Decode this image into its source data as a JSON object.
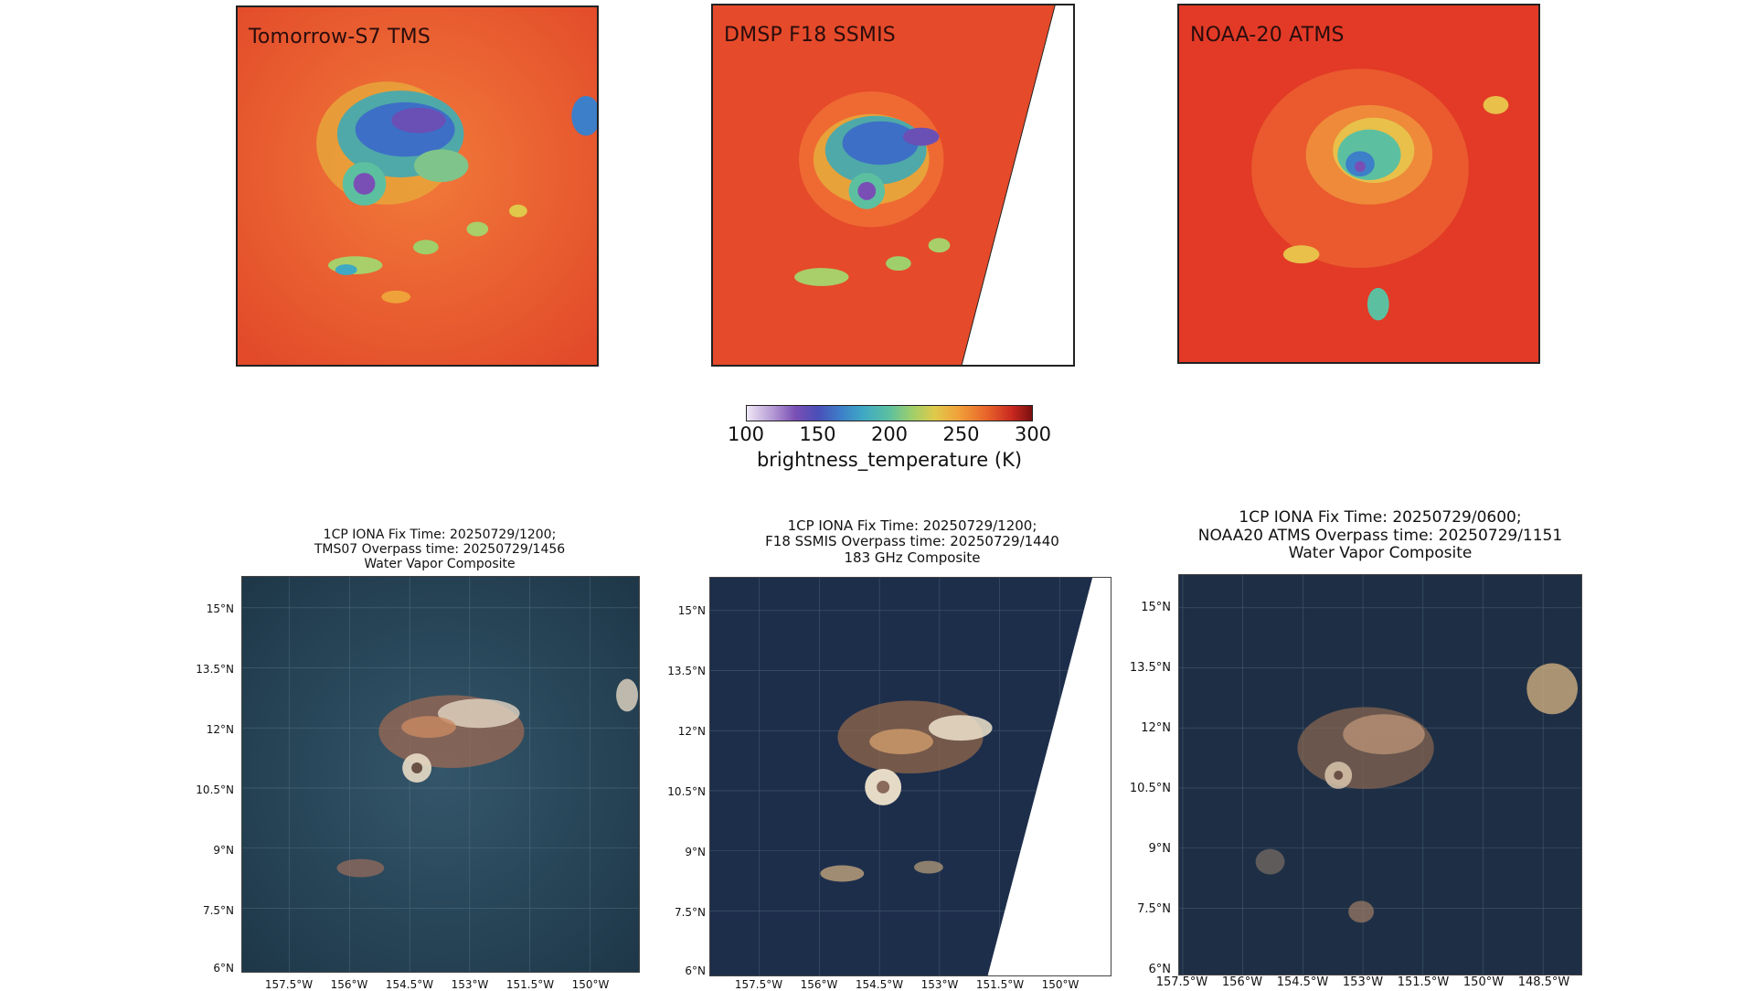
{
  "top_panels": [
    {
      "label": "Tomorrow-S7 TMS"
    },
    {
      "label": "DMSP F18 SSMIS"
    },
    {
      "label": "NOAA-20 ATMS"
    }
  ],
  "colorbar": {
    "ticks": [
      "100",
      "150",
      "200",
      "250",
      "300"
    ],
    "label": "brightness_temperature (K)",
    "colors": [
      "#efe7f5",
      "#7a4fb5",
      "#3d7fc8",
      "#5cc0a0",
      "#e0c94a",
      "#e8652a",
      "#7a1010"
    ]
  },
  "bottom_panels": [
    {
      "title_line1": "1CP IONA Fix Time: 20250729/1200;",
      "title_line2": "TMS07 Overpass time: 20250729/1456",
      "title_line3": "Water Vapor Composite",
      "y_ticks": [
        "15°N",
        "13.5°N",
        "12°N",
        "10.5°N",
        "9°N",
        "7.5°N",
        "6°N"
      ],
      "x_ticks": [
        "157.5°W",
        "156°W",
        "154.5°W",
        "153°W",
        "151.5°W",
        "150°W"
      ]
    },
    {
      "title_line1": "1CP IONA Fix Time: 20250729/1200;",
      "title_line2": "F18 SSMIS Overpass time: 20250729/1440",
      "title_line3": "183 GHz Composite",
      "y_ticks": [
        "15°N",
        "13.5°N",
        "12°N",
        "10.5°N",
        "9°N",
        "7.5°N",
        "6°N"
      ],
      "x_ticks": [
        "157.5°W",
        "156°W",
        "154.5°W",
        "153°W",
        "151.5°W",
        "150°W"
      ]
    },
    {
      "title_line1": "1CP IONA Fix Time: 20250729/0600;",
      "title_line2": "NOAA20 ATMS Overpass time: 20250729/1151",
      "title_line3": "Water Vapor Composite",
      "y_ticks": [
        "15°N",
        "13.5°N",
        "12°N",
        "10.5°N",
        "9°N",
        "7.5°N",
        "6°N"
      ],
      "x_ticks": [
        "157.5°W",
        "156°W",
        "154.5°W",
        "153°W",
        "151.5°W",
        "150°W",
        "148.5°W"
      ]
    }
  ]
}
